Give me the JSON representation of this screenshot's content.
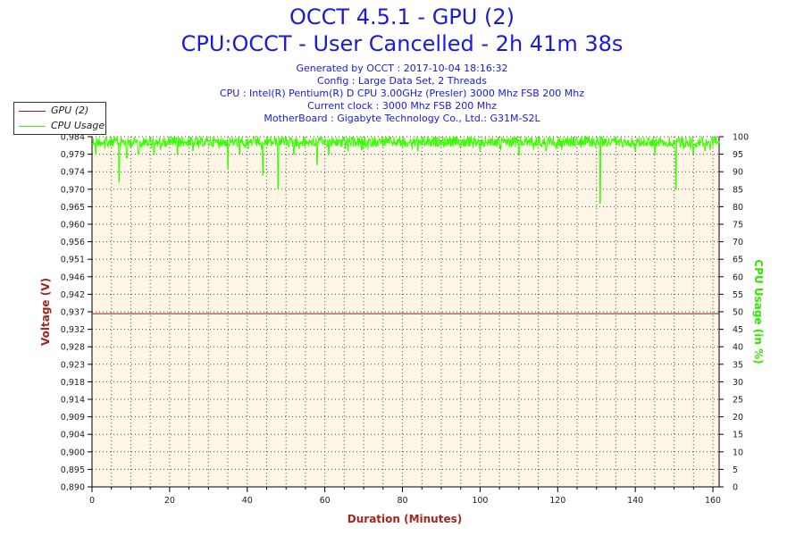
{
  "header": {
    "title": "OCCT 4.5.1 - GPU (2)",
    "subtitle": "CPU:OCCT - User Cancelled - 2h 41m 38s",
    "info_lines": [
      "Generated by OCCT : 2017-10-04 18:16:32",
      "Config : Large Data Set, 2 Threads",
      "CPU : Intel(R) Pentium(R) D CPU 3.00GHz (Presler) 3000 Mhz FSB 200 Mhz",
      "Current clock : 3000 Mhz FSB 200 Mhz",
      "MotherBoard : Gigabyte Technology Co., Ltd.: G31M-S2L"
    ]
  },
  "legend": [
    {
      "name": "GPU (2)",
      "color": "#8b1a1a"
    },
    {
      "name": "CPU Usage",
      "color": "#33ff00"
    }
  ],
  "chart_data": {
    "type": "line",
    "xlabel": "Duration (Minutes)",
    "ylabel": "Voltage (V)",
    "y2label": "CPU Usage (in %)",
    "xlim": [
      0,
      161.6
    ],
    "ylim": [
      0.89,
      0.984
    ],
    "y2lim": [
      0,
      100
    ],
    "x_ticks": [
      0,
      20,
      40,
      60,
      80,
      100,
      120,
      140,
      160
    ],
    "y_ticks": [
      "0,890",
      "0,895",
      "0,900",
      "0,904",
      "0,909",
      "0,914",
      "0,918",
      "0,923",
      "0,928",
      "0,932",
      "0,937",
      "0,942",
      "0,946",
      "0,951",
      "0,956",
      "0,960",
      "0,965",
      "0,970",
      "0,974",
      "0,979",
      "0,984"
    ],
    "y2_ticks": [
      0,
      5,
      10,
      15,
      20,
      25,
      30,
      35,
      40,
      45,
      50,
      55,
      60,
      65,
      70,
      75,
      80,
      85,
      90,
      95,
      100
    ],
    "grid": true,
    "legend_position": "top-left",
    "series": [
      {
        "name": "GPU (2)",
        "axis": "left",
        "color": "#8b1a1a",
        "points": [
          [
            0,
            0.9365
          ],
          [
            161.6,
            0.9365
          ]
        ]
      },
      {
        "name": "CPU Usage",
        "axis": "right",
        "color": "#33ff00",
        "baseline": [
          97,
          100
        ],
        "dips": [
          [
            1,
            95
          ],
          [
            7,
            87
          ],
          [
            9,
            94
          ],
          [
            12,
            95
          ],
          [
            16,
            95
          ],
          [
            22,
            95
          ],
          [
            26,
            96
          ],
          [
            35,
            91
          ],
          [
            38,
            95
          ],
          [
            44,
            89
          ],
          [
            48,
            85
          ],
          [
            52,
            95
          ],
          [
            58,
            92
          ],
          [
            61,
            95
          ],
          [
            66,
            96
          ],
          [
            84,
            96
          ],
          [
            100,
            96
          ],
          [
            110,
            95
          ],
          [
            117,
            96
          ],
          [
            131,
            81
          ],
          [
            140,
            96
          ],
          [
            145,
            95
          ],
          [
            150.5,
            85
          ],
          [
            155,
            95
          ],
          [
            158,
            96
          ]
        ]
      }
    ]
  }
}
